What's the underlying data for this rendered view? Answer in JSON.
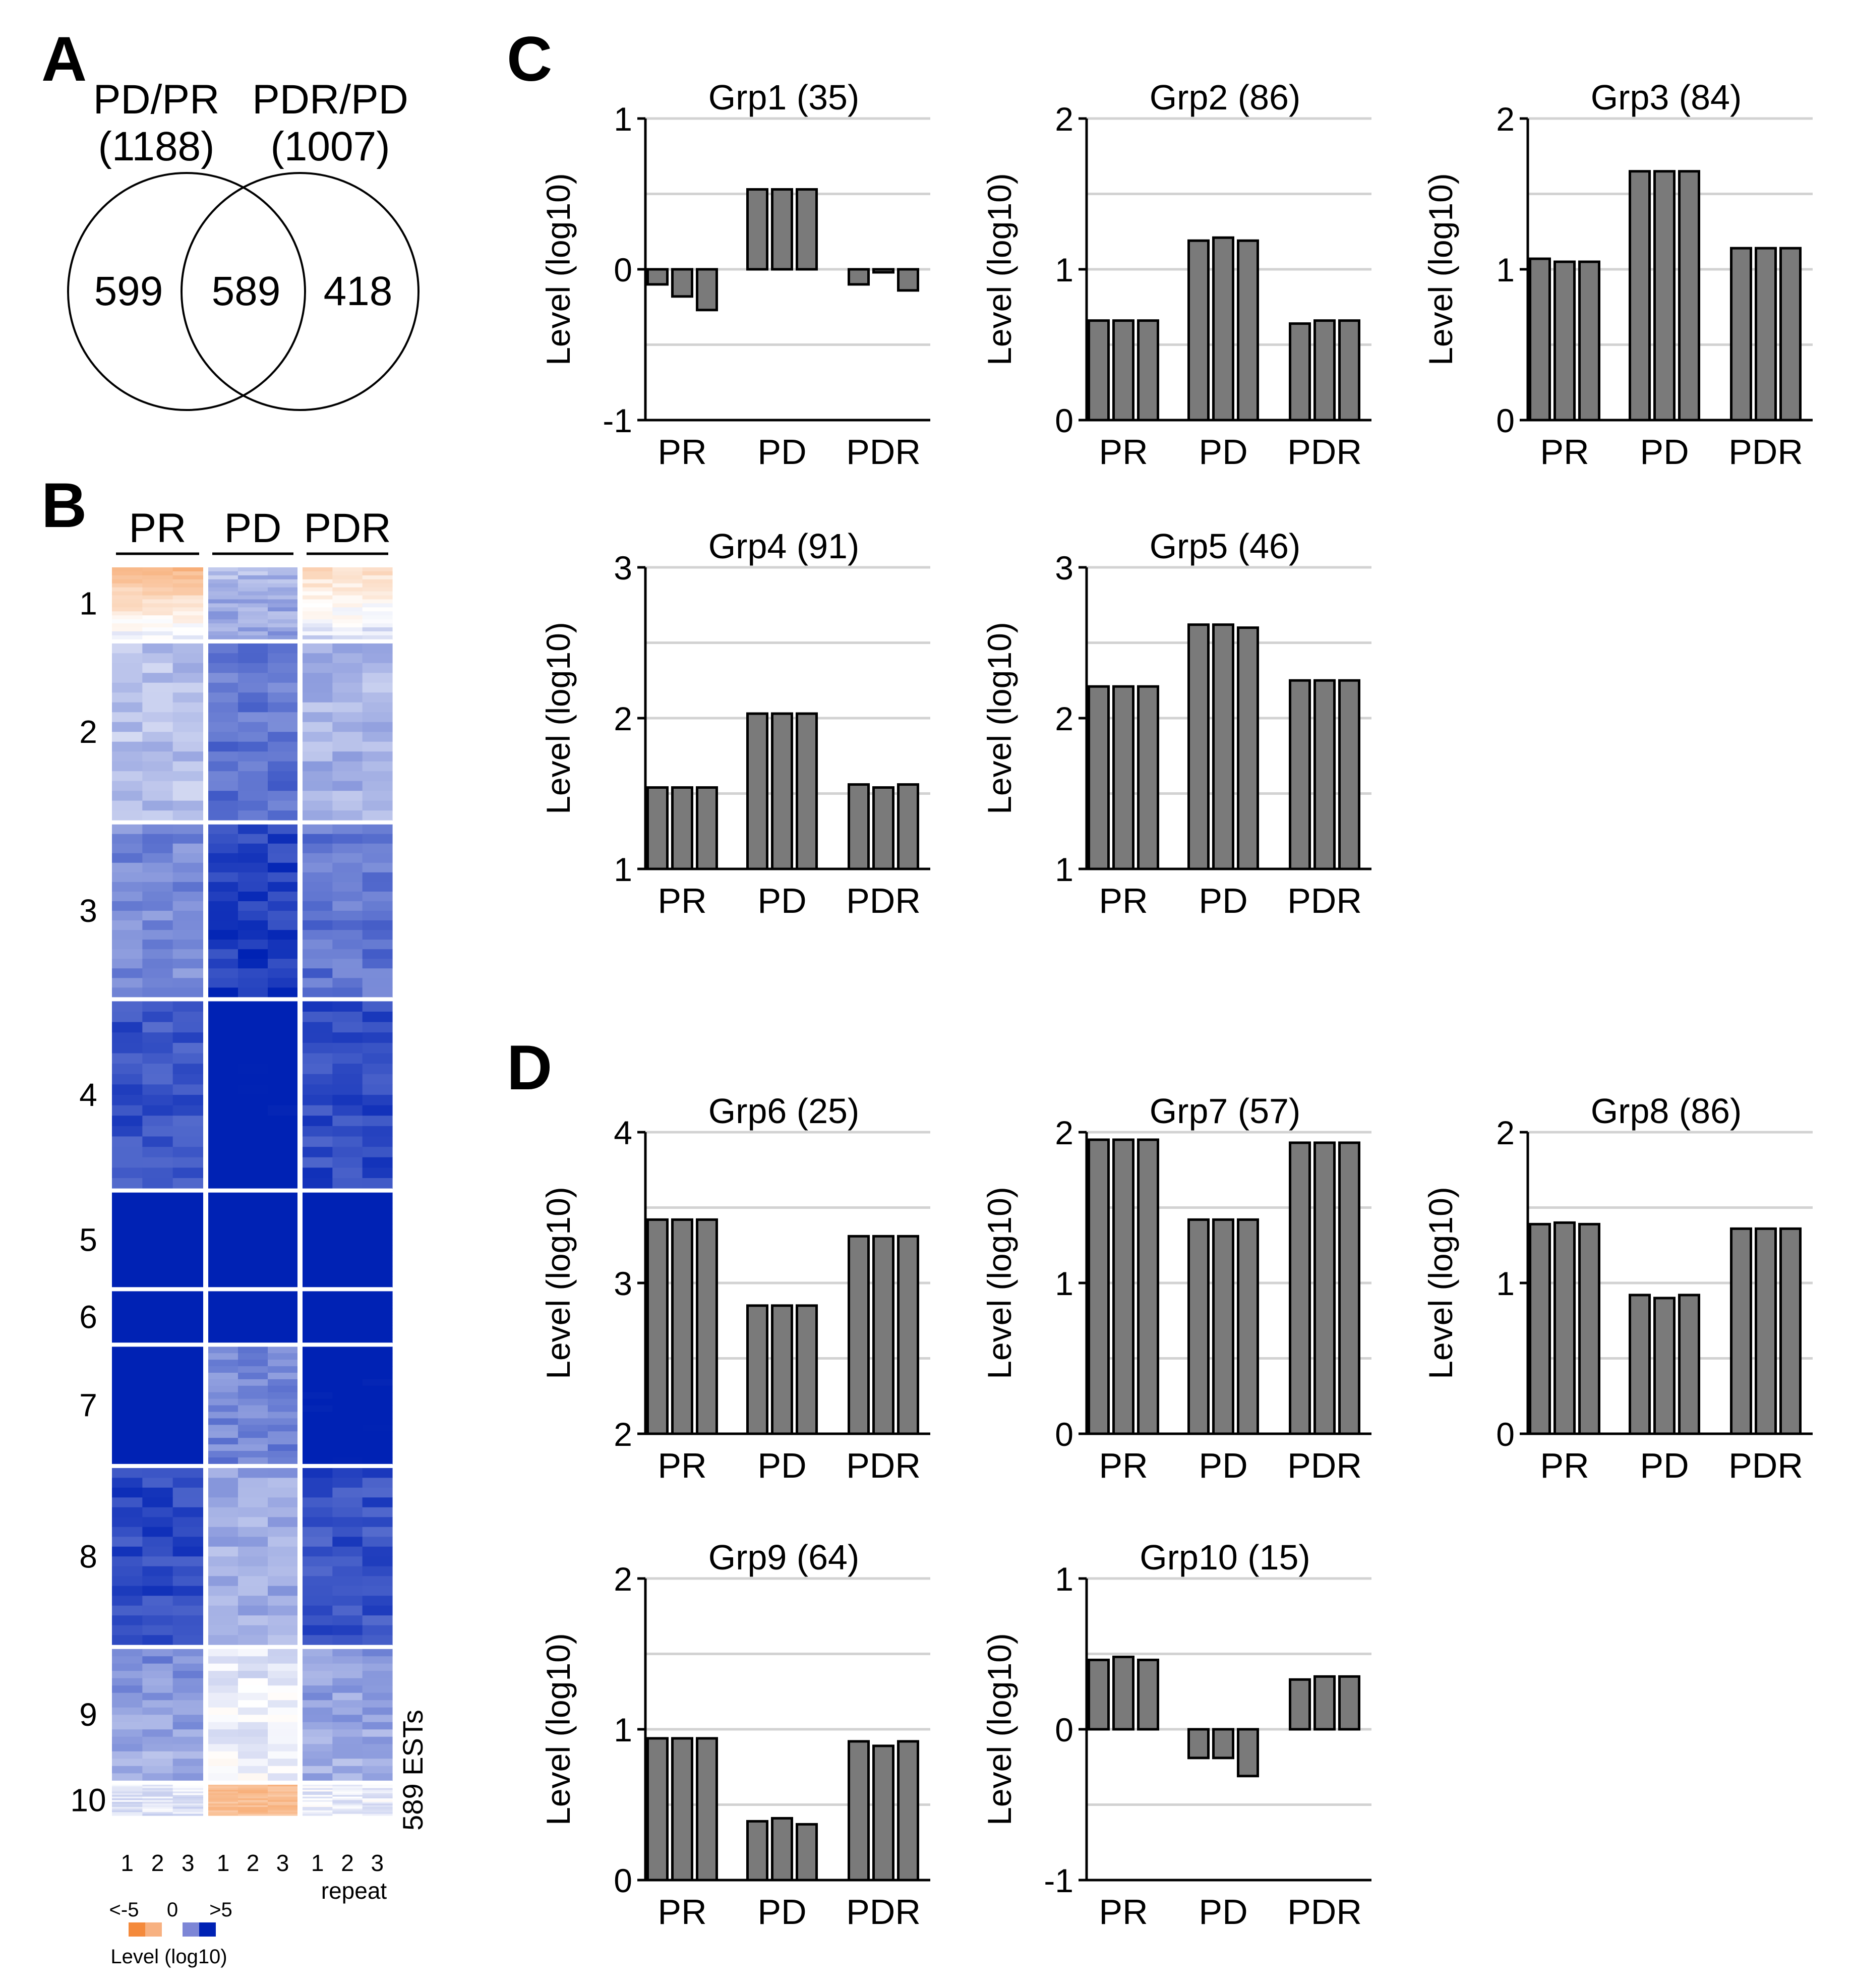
{
  "panel_labels": {
    "a": "A",
    "b": "B",
    "c": "C",
    "d": "D"
  },
  "venn": {
    "set1_name": "PD/PR",
    "set1_total": "(1188)",
    "set2_name": "PDR/PD",
    "set2_total": "(1007)",
    "only1": "599",
    "both": "589",
    "only2": "418"
  },
  "heatmap": {
    "conditions": [
      "PR",
      "PD",
      "PDR"
    ],
    "repeat_labels": [
      "1",
      "2",
      "3",
      "1",
      "2",
      "3",
      "1",
      "2",
      "3"
    ],
    "repeat_caption": "repeat",
    "side_label": "589 ESTs",
    "group_labels": [
      "1",
      "2",
      "3",
      "4",
      "5",
      "6",
      "7",
      "8",
      "9",
      "10"
    ],
    "group_sizes": [
      35,
      86,
      84,
      91,
      46,
      25,
      57,
      86,
      64,
      15
    ],
    "legend": {
      "min_label": "<-5",
      "mid_label": "0",
      "max_label": ">5",
      "title": "Level (log10)"
    },
    "colors": {
      "low": "#f48a3c",
      "mid": "#ffffff",
      "high": "#0022b4"
    }
  },
  "chart_data": [
    {
      "type": "bar",
      "panel": "C",
      "title": "Grp1 (35)",
      "ylabel": "Level (log10)",
      "categories": [
        "PR",
        "PD",
        "PDR"
      ],
      "ylim": [
        -1,
        1
      ],
      "yticks": [
        "-1",
        "0",
        "1"
      ],
      "values": [
        [
          -0.1,
          -0.18,
          -0.27
        ],
        [
          0.53,
          0.53,
          0.53
        ],
        [
          -0.1,
          -0.02,
          -0.14
        ]
      ]
    },
    {
      "type": "bar",
      "panel": "C",
      "title": "Grp2 (86)",
      "ylabel": "Level (log10)",
      "categories": [
        "PR",
        "PD",
        "PDR"
      ],
      "ylim": [
        0,
        2
      ],
      "yticks": [
        "0",
        "1",
        "2"
      ],
      "values": [
        [
          0.66,
          0.66,
          0.66
        ],
        [
          1.19,
          1.21,
          1.19
        ],
        [
          0.64,
          0.66,
          0.66
        ]
      ]
    },
    {
      "type": "bar",
      "panel": "C",
      "title": "Grp3 (84)",
      "ylabel": "Level (log10)",
      "categories": [
        "PR",
        "PD",
        "PDR"
      ],
      "ylim": [
        0,
        2
      ],
      "yticks": [
        "0",
        "1",
        "2"
      ],
      "values": [
        [
          1.07,
          1.05,
          1.05
        ],
        [
          1.65,
          1.65,
          1.65
        ],
        [
          1.14,
          1.14,
          1.14
        ]
      ]
    },
    {
      "type": "bar",
      "panel": "C",
      "title": "Grp4 (91)",
      "ylabel": "Level (log10)",
      "categories": [
        "PR",
        "PD",
        "PDR"
      ],
      "ylim": [
        1,
        3
      ],
      "yticks": [
        "1",
        "2",
        "3"
      ],
      "values": [
        [
          1.54,
          1.54,
          1.54
        ],
        [
          2.03,
          2.03,
          2.03
        ],
        [
          1.56,
          1.54,
          1.56
        ]
      ]
    },
    {
      "type": "bar",
      "panel": "C",
      "title": "Grp5 (46)",
      "ylabel": "Level (log10)",
      "categories": [
        "PR",
        "PD",
        "PDR"
      ],
      "ylim": [
        1,
        3
      ],
      "yticks": [
        "1",
        "2",
        "3"
      ],
      "values": [
        [
          2.21,
          2.21,
          2.21
        ],
        [
          2.62,
          2.62,
          2.6
        ],
        [
          2.25,
          2.25,
          2.25
        ]
      ]
    },
    {
      "type": "bar",
      "panel": "D",
      "title": "Grp6 (25)",
      "ylabel": "Level (log10)",
      "categories": [
        "PR",
        "PD",
        "PDR"
      ],
      "ylim": [
        2,
        4
      ],
      "yticks": [
        "2",
        "3",
        "4"
      ],
      "values": [
        [
          3.42,
          3.42,
          3.42
        ],
        [
          2.85,
          2.85,
          2.85
        ],
        [
          3.31,
          3.31,
          3.31
        ]
      ]
    },
    {
      "type": "bar",
      "panel": "D",
      "title": "Grp7 (57)",
      "ylabel": "Level (log10)",
      "categories": [
        "PR",
        "PD",
        "PDR"
      ],
      "ylim": [
        0,
        2
      ],
      "yticks": [
        "0",
        "1",
        "2"
      ],
      "values": [
        [
          1.95,
          1.95,
          1.95
        ],
        [
          1.42,
          1.42,
          1.42
        ],
        [
          1.93,
          1.93,
          1.93
        ]
      ]
    },
    {
      "type": "bar",
      "panel": "D",
      "title": "Grp8 (86)",
      "ylabel": "Level (log10)",
      "categories": [
        "PR",
        "PD",
        "PDR"
      ],
      "ylim": [
        0,
        2
      ],
      "yticks": [
        "0",
        "1",
        "2"
      ],
      "values": [
        [
          1.39,
          1.4,
          1.39
        ],
        [
          0.92,
          0.9,
          0.92
        ],
        [
          1.36,
          1.36,
          1.36
        ]
      ]
    },
    {
      "type": "bar",
      "panel": "D",
      "title": "Grp9 (64)",
      "ylabel": "Level (log10)",
      "categories": [
        "PR",
        "PD",
        "PDR"
      ],
      "ylim": [
        0,
        2
      ],
      "yticks": [
        "0",
        "1",
        "2"
      ],
      "values": [
        [
          0.94,
          0.94,
          0.94
        ],
        [
          0.39,
          0.41,
          0.37
        ],
        [
          0.92,
          0.89,
          0.92
        ]
      ]
    },
    {
      "type": "bar",
      "panel": "D",
      "title": "Grp10 (15)",
      "ylabel": "Level (log10)",
      "categories": [
        "PR",
        "PD",
        "PDR"
      ],
      "ylim": [
        -1,
        1
      ],
      "yticks": [
        "-1",
        "0",
        "1"
      ],
      "values": [
        [
          0.46,
          0.48,
          0.46
        ],
        [
          -0.19,
          -0.19,
          -0.31
        ],
        [
          0.33,
          0.35,
          0.35
        ]
      ]
    }
  ]
}
